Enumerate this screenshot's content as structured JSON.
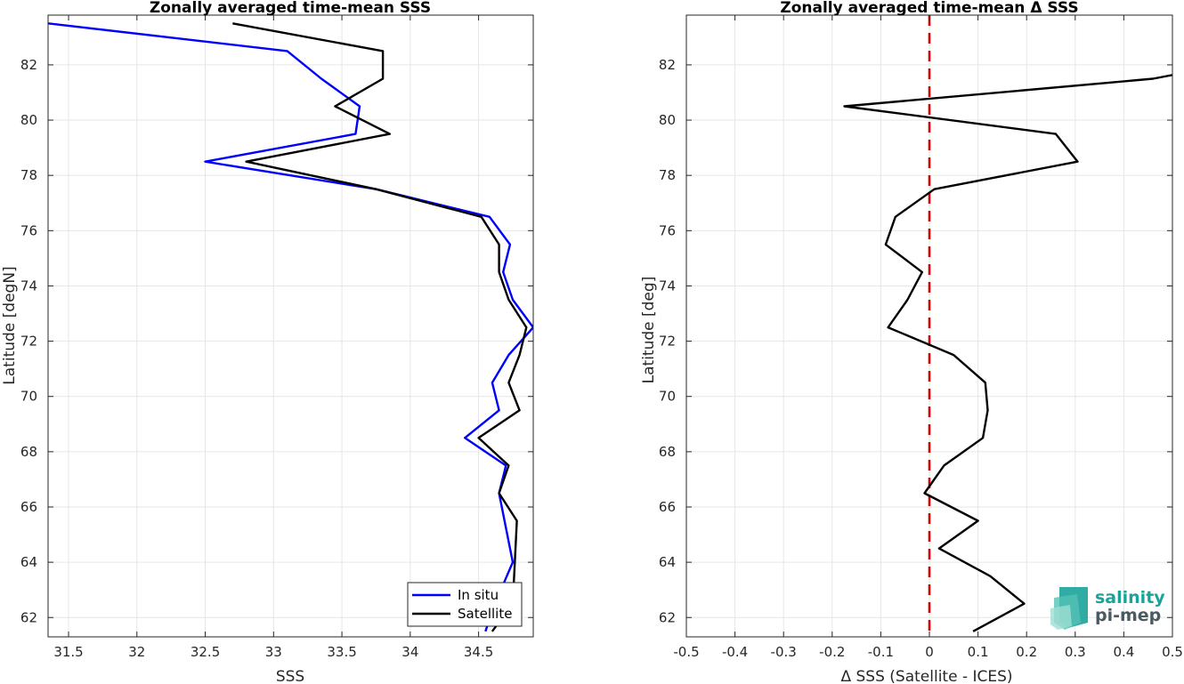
{
  "chart_data": [
    {
      "type": "line",
      "title": "Zonally averaged time-mean SSS",
      "xlabel": "SSS",
      "ylabel": "Latitude [degN]",
      "xlim": [
        31.35,
        34.9
      ],
      "ylim": [
        61.3,
        83.8
      ],
      "xticks": [
        "31.5",
        "32",
        "32.5",
        "33",
        "33.5",
        "34",
        "34.5"
      ],
      "xtick_values": [
        31.5,
        32,
        32.5,
        33,
        33.5,
        34,
        34.5
      ],
      "yticks": [
        "62",
        "64",
        "66",
        "68",
        "70",
        "72",
        "74",
        "76",
        "78",
        "80",
        "82"
      ],
      "ytick_values": [
        62,
        64,
        66,
        68,
        70,
        72,
        74,
        76,
        78,
        80,
        82
      ],
      "grid": true,
      "legend": "bottom-right",
      "series": [
        {
          "name": "In situ",
          "color": "#0000ff",
          "points": [
            [
              34.55,
              61.5
            ],
            [
              34.62,
              62.5
            ],
            [
              34.75,
              64.0
            ],
            [
              34.65,
              66.5
            ],
            [
              34.7,
              67.5
            ],
            [
              34.4,
              68.5
            ],
            [
              34.65,
              69.5
            ],
            [
              34.6,
              70.5
            ],
            [
              34.72,
              71.5
            ],
            [
              34.9,
              72.5
            ],
            [
              34.75,
              73.5
            ],
            [
              34.68,
              74.5
            ],
            [
              34.73,
              75.5
            ],
            [
              34.58,
              76.5
            ],
            [
              33.75,
              77.5
            ],
            [
              32.5,
              78.5
            ],
            [
              33.6,
              79.5
            ],
            [
              33.63,
              80.5
            ],
            [
              33.35,
              81.5
            ],
            [
              33.1,
              82.5
            ],
            [
              31.35,
              83.5
            ]
          ]
        },
        {
          "name": "Satellite",
          "color": "#000000",
          "points": [
            [
              34.6,
              61.5
            ],
            [
              34.75,
              62.5
            ],
            [
              34.78,
              65.5
            ],
            [
              34.65,
              66.5
            ],
            [
              34.72,
              67.5
            ],
            [
              34.5,
              68.5
            ],
            [
              34.8,
              69.5
            ],
            [
              34.72,
              70.5
            ],
            [
              34.8,
              71.5
            ],
            [
              34.85,
              72.5
            ],
            [
              34.72,
              73.5
            ],
            [
              34.65,
              74.5
            ],
            [
              34.65,
              75.5
            ],
            [
              34.52,
              76.5
            ],
            [
              33.75,
              77.5
            ],
            [
              32.8,
              78.5
            ],
            [
              33.85,
              79.5
            ],
            [
              33.45,
              80.5
            ],
            [
              33.8,
              81.5
            ],
            [
              33.8,
              82.5
            ],
            [
              32.7,
              83.5
            ]
          ]
        }
      ]
    },
    {
      "type": "line",
      "title": "Zonally averaged time-mean Δ SSS",
      "xlabel": "Δ SSS (Satellite - ICES)",
      "ylabel": "Latitude [deg]",
      "xlim": [
        -0.5,
        0.5
      ],
      "ylim": [
        61.3,
        83.8
      ],
      "xticks": [
        "-0.5",
        "-0.4",
        "-0.3",
        "-0.2",
        "-0.1",
        "0",
        "0.1",
        "0.2",
        "0.3",
        "0.4",
        "0.5"
      ],
      "xtick_values": [
        -0.5,
        -0.4,
        -0.3,
        -0.2,
        -0.1,
        0,
        0.1,
        0.2,
        0.3,
        0.4,
        0.5
      ],
      "yticks": [
        "62",
        "64",
        "66",
        "68",
        "70",
        "72",
        "74",
        "76",
        "78",
        "80",
        "82"
      ],
      "ytick_values": [
        62,
        64,
        66,
        68,
        70,
        72,
        74,
        76,
        78,
        80,
        82
      ],
      "grid": true,
      "reference_line": {
        "x": 0,
        "color": "#dd0000",
        "style": "dashed"
      },
      "series": [
        {
          "color": "#000000",
          "points": [
            [
              0.09,
              61.5
            ],
            [
              0.195,
              62.5
            ],
            [
              0.125,
              63.5
            ],
            [
              0.02,
              64.5
            ],
            [
              0.1,
              65.5
            ],
            [
              -0.01,
              66.5
            ],
            [
              0.03,
              67.5
            ],
            [
              0.11,
              68.5
            ],
            [
              0.12,
              69.5
            ],
            [
              0.115,
              70.5
            ],
            [
              0.05,
              71.5
            ],
            [
              -0.085,
              72.5
            ],
            [
              -0.045,
              73.5
            ],
            [
              -0.015,
              74.5
            ],
            [
              -0.09,
              75.5
            ],
            [
              -0.07,
              76.5
            ],
            [
              0.01,
              77.5
            ],
            [
              0.305,
              78.5
            ],
            [
              0.26,
              79.5
            ],
            [
              -0.175,
              80.5
            ],
            [
              0.46,
              81.5
            ],
            [
              0.52,
              81.7
            ]
          ]
        }
      ]
    }
  ],
  "logo": {
    "line1": "salinity",
    "line2": "pi-mep",
    "color": "#1aa39a"
  }
}
